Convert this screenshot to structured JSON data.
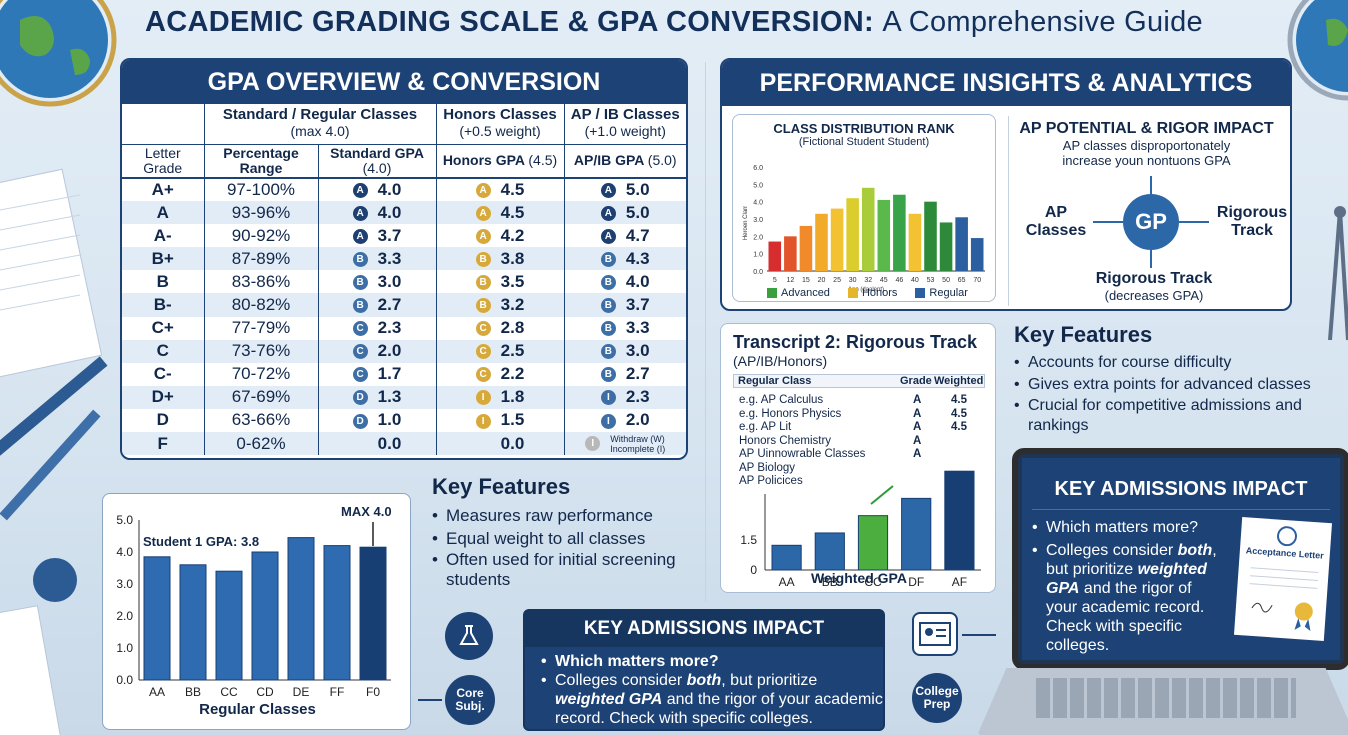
{
  "title_bold": "ACADEMIC GRADING SCALE & GPA CONVERSION:",
  "title_thin": "A Comprehensive Guide",
  "gpa_panel": {
    "title": "GPA OVERVIEW & CONVERSION",
    "group_standard": "Standard / Regular Classes",
    "group_standard_sub": "(max 4.0)",
    "group_honors": "Honors Classes",
    "group_honors_sub": "(+0.5 weight)",
    "group_ap": "AP / IB Classes",
    "group_ap_sub": "(+1.0 weight)",
    "col_letter": "Letter Grade",
    "col_pct": "Percentage Range",
    "col_std": "Standard GPA",
    "col_std_sub": "(4.0)",
    "col_hon": "Honors GPA",
    "col_hon_sub": "(4.5)",
    "col_ap": "AP/IB GPA",
    "col_ap_sub": "(5.0)",
    "rows": [
      {
        "g": "A+",
        "p": "97-100%",
        "sb": "A",
        "s": "4.0",
        "hb": "A",
        "h": "4.5",
        "ab": "A",
        "a": "5.0"
      },
      {
        "g": "A",
        "p": "93-96%",
        "sb": "A",
        "s": "4.0",
        "hb": "A",
        "h": "4.5",
        "ab": "A",
        "a": "5.0"
      },
      {
        "g": "A-",
        "p": "90-92%",
        "sb": "A",
        "s": "3.7",
        "hb": "A",
        "h": "4.2",
        "ab": "A",
        "a": "4.7"
      },
      {
        "g": "B+",
        "p": "87-89%",
        "sb": "B",
        "s": "3.3",
        "hb": "B",
        "h": "3.8",
        "ab": "B",
        "a": "4.3"
      },
      {
        "g": "B",
        "p": "83-86%",
        "sb": "B",
        "s": "3.0",
        "hb": "B",
        "h": "3.5",
        "ab": "B",
        "a": "4.0"
      },
      {
        "g": "B-",
        "p": "80-82%",
        "sb": "B",
        "s": "2.7",
        "hb": "B",
        "h": "3.2",
        "ab": "B",
        "a": "3.7"
      },
      {
        "g": "C+",
        "p": "77-79%",
        "sb": "C",
        "s": "2.3",
        "hb": "C",
        "h": "2.8",
        "ab": "B",
        "a": "3.3"
      },
      {
        "g": "C",
        "p": "73-76%",
        "sb": "C",
        "s": "2.0",
        "hb": "C",
        "h": "2.5",
        "ab": "B",
        "a": "3.0"
      },
      {
        "g": "C-",
        "p": "70-72%",
        "sb": "C",
        "s": "1.7",
        "hb": "C",
        "h": "2.2",
        "ab": "B",
        "a": "2.7"
      },
      {
        "g": "D+",
        "p": "67-69%",
        "sb": "D",
        "s": "1.3",
        "hb": "I",
        "h": "1.8",
        "ab": "I",
        "a": "2.3"
      },
      {
        "g": "D",
        "p": "63-66%",
        "sb": "D",
        "s": "1.0",
        "hb": "I",
        "h": "1.5",
        "ab": "I",
        "a": "2.0"
      },
      {
        "g": "F",
        "p": "0-62%",
        "sb": "",
        "s": "0.0",
        "hb": "",
        "h": "0.0",
        "ab": "I",
        "a": ""
      }
    ],
    "withdraw_line1": "Withdraw (W)",
    "withdraw_line2": "Incomplete (I)"
  },
  "perf_panel": {
    "title": "PERFORMANCE INSIGHTS & ANALYTICS",
    "dist_title": "CLASS DISTRIBUTION RANK",
    "dist_sub": "(Fictional Student Student)",
    "dist_ylabel": "Heroen Clarr",
    "dist_xlabel": "Ann (daalent)",
    "legend": [
      "Advanced",
      "Honors",
      "Regular"
    ],
    "ap_title": "AP POTENTIAL & RIGOR IMPACT",
    "ap_sub1": "AP classes disproportonately",
    "ap_sub2": "increase youn nontuons GPA",
    "gp": "GP",
    "left_label": "AP Classes",
    "right_label": "Rigorous Track",
    "bottom_label": "Rigorous Track",
    "bottom_sub": "(decreases GPA)"
  },
  "key_features_right": {
    "title": "Key Features",
    "items": [
      "Accounts for course difficulty",
      "Gives extra points for advanced classes",
      "Crucial for competitive admissions and rankings"
    ]
  },
  "key_features_left": {
    "title": "Key Features",
    "items": [
      "Measures raw performance",
      "Equal weight to all classes",
      "Often used for initial screening students"
    ]
  },
  "transcript": {
    "title": "Transcript 2: Rigorous Track",
    "sub": "(AP/IB/Honors)",
    "h_class": "Regular Class",
    "h_grade": "Grade",
    "h_weighted": "Weighted",
    "rows": [
      {
        "c": "e.g. AP Calculus",
        "g": "A",
        "w": "4.5"
      },
      {
        "c": "e.g. Honors Physics",
        "g": "A",
        "w": "4.5"
      },
      {
        "c": "e.g. AP Lit",
        "g": "A",
        "w": "4.5"
      },
      {
        "c": "Honors Chemistry",
        "g": "A",
        "w": ""
      },
      {
        "c": "AP Uinnowrable Classes",
        "g": "A",
        "w": ""
      },
      {
        "c": "AP Biology",
        "g": "",
        "w": ""
      },
      {
        "c": "AP Policices",
        "g": "",
        "w": ""
      }
    ],
    "xlabel": "Weighted GPA"
  },
  "chart_data": [
    {
      "type": "bar",
      "title": "CLASS DISTRIBUTION RANK",
      "subtitle": "(Fictional Student Student)",
      "ylabel": "Heroen Clarr",
      "xlabel": "Ann (daalent)",
      "ylim": [
        0,
        6
      ],
      "categories": [
        "5",
        "12",
        "15",
        "20",
        "25",
        "30",
        "32",
        "45",
        "46",
        "40",
        "53",
        "50",
        "65",
        "70"
      ],
      "values": [
        1.7,
        2.0,
        2.6,
        3.3,
        3.6,
        4.2,
        4.8,
        4.1,
        4.4,
        3.3,
        4.0,
        2.8,
        3.1,
        1.9
      ],
      "colors": [
        "#d62e2e",
        "#e2552a",
        "#f08a2a",
        "#f2aa2a",
        "#f2c232",
        "#dccd2e",
        "#a9cc3a",
        "#5bb84a",
        "#39a34a",
        "#f2c232",
        "#2c8a3a",
        "#2c8a3a",
        "#2c5fa0",
        "#2c5fa0"
      ],
      "legend": [
        "Advanced",
        "Honors",
        "Regular"
      ]
    },
    {
      "type": "bar",
      "title": "Student 1 GPA: 3.8",
      "annotation": "MAX 4.0",
      "xlabel": "Regular Classes",
      "ylim": [
        0,
        5
      ],
      "categories": [
        "AA",
        "BB",
        "CC",
        "CD",
        "DE",
        "FF",
        "F0"
      ],
      "values": [
        3.85,
        3.6,
        3.4,
        4.0,
        4.45,
        4.2,
        4.15
      ]
    },
    {
      "type": "bar",
      "xlabel": "Weighted GPA",
      "ylim": [
        0,
        2.0
      ],
      "categories": [
        "AA",
        "BB",
        "CC",
        "DF",
        "AF"
      ],
      "values": [
        0.5,
        0.75,
        1.1,
        1.45,
        2.0
      ],
      "colors": [
        "#2c67a8",
        "#2c67a8",
        "#4cae3e",
        "#2c67a8",
        "#173f74"
      ]
    }
  ],
  "admissions_left": {
    "title": "KEY ADMISSIONS IMPACT",
    "q": "Which matters more?",
    "a1": "Colleges consider ",
    "a_both": "both",
    "a2": ", but prioritize ",
    "a_w": "weighted GPA",
    "a3": " and the rigor of your academic record. Check with specific colleges."
  },
  "admissions_laptop": {
    "title": "KEY ADMISSIONS IMPACT",
    "q": "Which matters more?",
    "a1": "Colleges consider ",
    "a_both": "both",
    "a2": ", but prioritize ",
    "a_w": "weighted GPA",
    "a3": " and the rigor of your academic record. Check with specific colleges.",
    "letter": "Acceptance Letter"
  },
  "icons": {
    "core": "Core Subj.",
    "college": "College Prep"
  }
}
